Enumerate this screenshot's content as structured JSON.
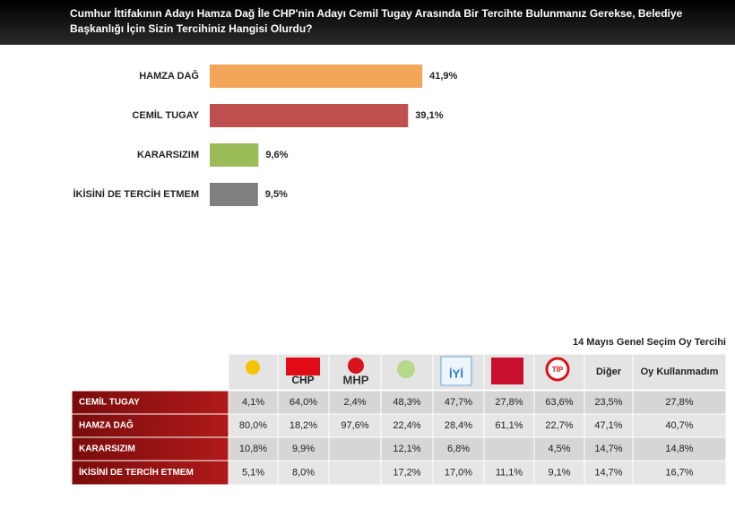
{
  "chart_data": {
    "type": "bar",
    "orientation": "horizontal",
    "title": "Cumhur İttifakının Adayı Hamza Dağ İle CHP'nin Adayı Cemil Tugay Arasında Bir Tercihte Bulunmanız Gerekse, Belediye Başkanlığı İçin Sizin Tercihiniz Hangisi Olurdu?",
    "categories": [
      "HAMZA DAĞ",
      "CEMİL TUGAY",
      "KARARSIZIM",
      "İKİSİNİ DE TERCİH ETMEM"
    ],
    "values": [
      41.9,
      39.1,
      9.6,
      9.5
    ],
    "value_labels": [
      "41,9%",
      "39,1%",
      "9,6%",
      "9,5%"
    ],
    "colors": [
      "#f3a55a",
      "#c0504d",
      "#9bbb59",
      "#7f7f7f"
    ]
  },
  "table": {
    "title": "14 Mayıs Genel Seçim Oy Tercihi",
    "party_logos": [
      "CHP",
      "MHP",
      "İYİ",
      "TİP"
    ],
    "columns": [
      "Diğer",
      "Oy Kullanmadım"
    ],
    "rows": [
      {
        "label": "CEMİL TUGAY",
        "cells": [
          "4,1%",
          "64,0%",
          "2,4%",
          "48,3%",
          "47,7%",
          "27,8%",
          "63,6%",
          "23,5%",
          "27,8%"
        ]
      },
      {
        "label": "HAMZA DAĞ",
        "cells": [
          "80,0%",
          "18,2%",
          "97,6%",
          "22,4%",
          "28,4%",
          "61,1%",
          "22,7%",
          "47,1%",
          "40,7%"
        ]
      },
      {
        "label": "KARARSIZIM",
        "cells": [
          "10,8%",
          "9,9%",
          null,
          "12,1%",
          "6,8%",
          null,
          "4,5%",
          "14,7%",
          "14,8%"
        ]
      },
      {
        "label": "İKİSİNİ DE TERCİH ETMEM",
        "cells": [
          "5,1%",
          "8,0%",
          null,
          "17,2%",
          "17,0%",
          "11,1%",
          "9,1%",
          "14,7%",
          "16,7%"
        ]
      }
    ]
  }
}
